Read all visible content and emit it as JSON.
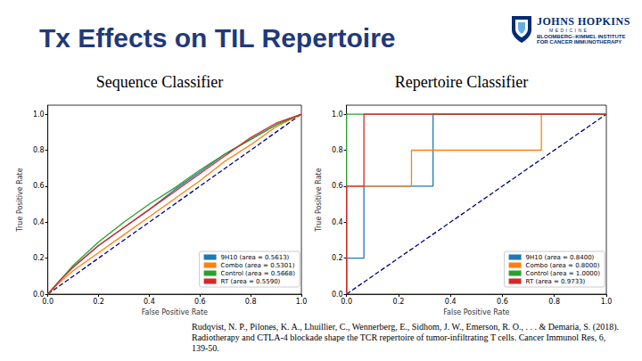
{
  "slide": {
    "title": "Tx Effects on TIL Repertoire",
    "logo": [
      "JOHNS HOPKINS",
      "MEDICINE",
      "BLOOMBERG~KIMMEL INSTITUTE",
      "FOR CANCER IMMUNOTHERAPY"
    ],
    "citation": "Rudqvist, N. P., Pilones, K. A., Lhuillier, C., Wennerberg, E., Sidhom, J. W., Emerson, R. O., . . . & Demaria, S. (2018). Radiotherapy and CTLA-4 blockade shape the TCR repertoire of tumor-infiltrating T cells. Cancer Immunol Res, 6, 139-50."
  },
  "chart_data": [
    {
      "type": "line",
      "title": "Sequence Classifier",
      "xlabel": "False Positive Rate",
      "ylabel": "True Positive Rate",
      "xlim": [
        0,
        1
      ],
      "ylim": [
        0,
        1.05
      ],
      "xticks": [
        {
          "value": 0,
          "label": "0.0"
        },
        0.2,
        0.4,
        0.6,
        0.8,
        {
          "value": 1,
          "label": "1.0"
        }
      ],
      "yticks": [
        {
          "value": 0,
          "label": "0.0"
        },
        0.2,
        0.4,
        0.6,
        0.8,
        {
          "value": 1,
          "label": "1.0"
        }
      ],
      "grid": false,
      "legend": "lower right",
      "series": [
        {
          "name": "9H10 (area = 0.5613)",
          "color": "#1f77b4",
          "x": [
            0,
            0.05,
            0.1,
            0.2,
            0.3,
            0.4,
            0.5,
            0.6,
            0.7,
            0.8,
            0.9,
            1
          ],
          "values": [
            0,
            0.08,
            0.15,
            0.27,
            0.37,
            0.47,
            0.58,
            0.68,
            0.78,
            0.86,
            0.94,
            1
          ]
        },
        {
          "name": "Combo (area = 0.5301)",
          "color": "#ff7f0e",
          "x": [
            0,
            0.05,
            0.1,
            0.2,
            0.3,
            0.4,
            0.5,
            0.6,
            0.7,
            0.8,
            0.9,
            1
          ],
          "values": [
            0,
            0.07,
            0.13,
            0.23,
            0.33,
            0.43,
            0.53,
            0.63,
            0.74,
            0.83,
            0.93,
            1
          ]
        },
        {
          "name": "Control (area = 0.5668)",
          "color": "#2ca02c",
          "x": [
            0,
            0.05,
            0.1,
            0.2,
            0.3,
            0.4,
            0.5,
            0.6,
            0.7,
            0.8,
            0.9,
            1
          ],
          "values": [
            0,
            0.08,
            0.16,
            0.29,
            0.4,
            0.5,
            0.59,
            0.69,
            0.78,
            0.86,
            0.94,
            1
          ]
        },
        {
          "name": "RT (area = 0.5590)",
          "color": "#d62728",
          "x": [
            0,
            0.05,
            0.1,
            0.2,
            0.3,
            0.4,
            0.5,
            0.6,
            0.7,
            0.8,
            0.9,
            1
          ],
          "values": [
            0,
            0.08,
            0.15,
            0.27,
            0.37,
            0.47,
            0.57,
            0.67,
            0.77,
            0.87,
            0.95,
            1
          ]
        },
        {
          "color": "#000080",
          "line_style": "dashed",
          "x": [
            0,
            1
          ],
          "values": [
            0,
            1
          ]
        }
      ]
    },
    {
      "type": "line",
      "title": "Repertoire Classifier",
      "xlabel": "False Positive Rate",
      "ylabel": "True Positive Rate",
      "xlim": [
        0,
        1
      ],
      "ylim": [
        0,
        1.05
      ],
      "xticks": [
        {
          "value": 0,
          "label": "0.0"
        },
        0.2,
        0.4,
        0.6,
        0.8,
        {
          "value": 1,
          "label": "1.0"
        }
      ],
      "yticks": [
        {
          "value": 0,
          "label": "0.0"
        },
        0.2,
        0.4,
        0.6,
        0.8,
        {
          "value": 1,
          "label": "1.0"
        }
      ],
      "grid": false,
      "legend": "lower right",
      "series": [
        {
          "name": "9H10 (area = 0.8400)",
          "color": "#1f77b4",
          "x": [
            0,
            0,
            0.067,
            0.067,
            0.333,
            0.333,
            1
          ],
          "values": [
            0,
            0.2,
            0.2,
            0.6,
            0.6,
            1,
            1
          ]
        },
        {
          "name": "Combo (area = 0.8000)",
          "color": "#ff7f0e",
          "x": [
            0,
            0,
            0.25,
            0.25,
            0.75,
            0.75,
            1
          ],
          "values": [
            0,
            0.6,
            0.6,
            0.8,
            0.8,
            1,
            1
          ]
        },
        {
          "name": "Control (area = 1.0000)",
          "color": "#2ca02c",
          "x": [
            0,
            0,
            1
          ],
          "values": [
            0,
            1,
            1
          ]
        },
        {
          "name": "RT (area = 0.9733)",
          "color": "#d62728",
          "x": [
            0,
            0,
            0.067,
            0.067,
            1
          ],
          "values": [
            0,
            0.6,
            0.6,
            1,
            1
          ]
        },
        {
          "color": "#000080",
          "line_style": "dashed",
          "x": [
            0,
            1
          ],
          "values": [
            0,
            1
          ]
        }
      ]
    }
  ]
}
